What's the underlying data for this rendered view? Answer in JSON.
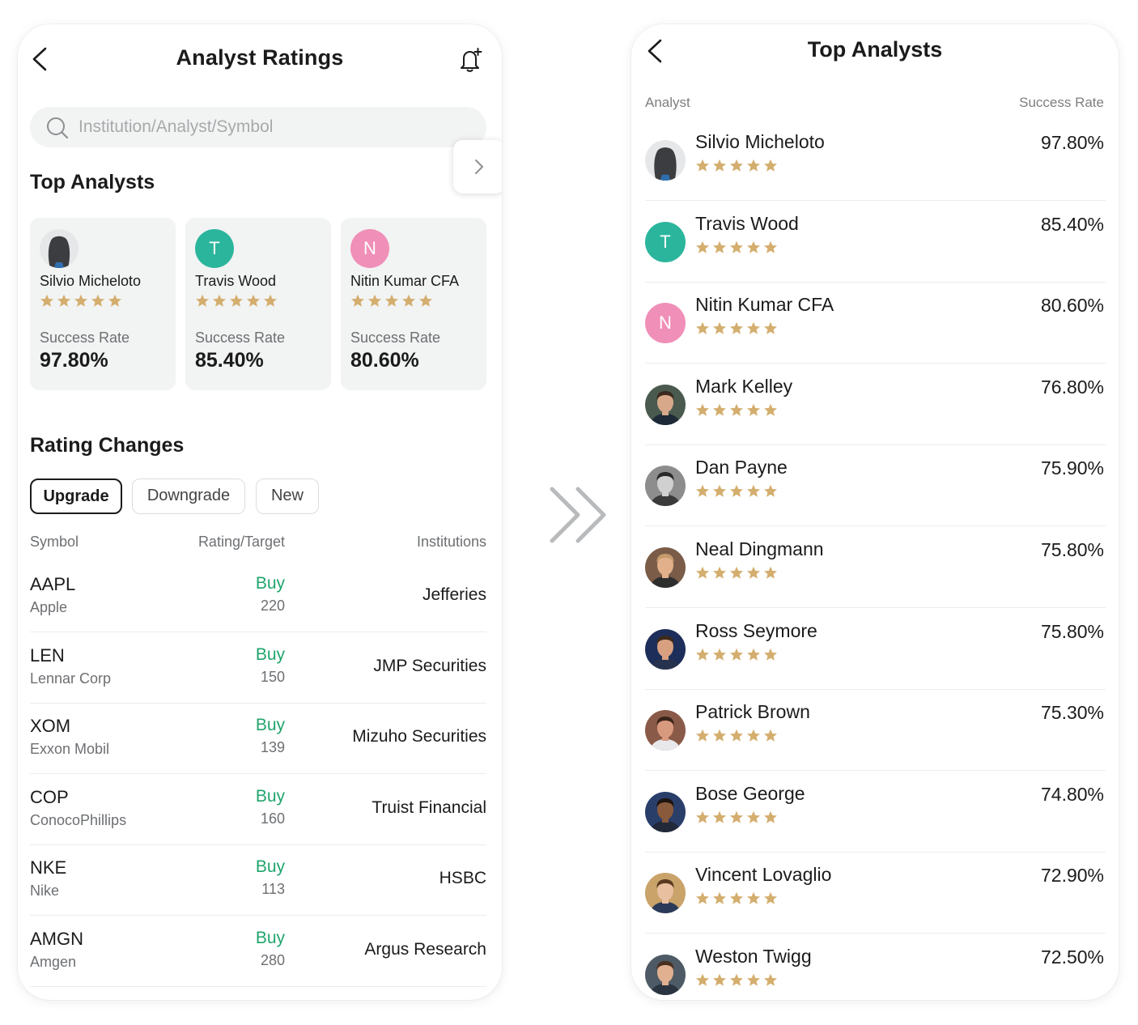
{
  "colors": {
    "star": "#d4ae6e",
    "buy": "#20a56c",
    "teal_avatar": "#2bb59d",
    "pink_avatar": "#f08fb8",
    "card_bg": "#f2f3f3"
  },
  "left": {
    "header": {
      "title": "Analyst Ratings",
      "back_icon": "chevron-left-icon",
      "bell_icon": "bell-plus-icon"
    },
    "search": {
      "placeholder": "Institution/Analyst/Symbol",
      "icon": "search-icon"
    },
    "top_analysts": {
      "title": "Top Analysts",
      "cards": [
        {
          "name": "Silvio Micheloto",
          "avatar_type": "silhouette",
          "success_label": "Success Rate",
          "success_rate": "97.80%",
          "stars": 5
        },
        {
          "name": "Travis Wood",
          "avatar_type": "letter",
          "avatar_letter": "T",
          "avatar_color": "#2bb59d",
          "success_label": "Success Rate",
          "success_rate": "85.40%",
          "stars": 5
        },
        {
          "name": "Nitin Kumar CFA",
          "avatar_type": "letter",
          "avatar_letter": "N",
          "avatar_color": "#f08fb8",
          "success_label": "Success Rate",
          "success_rate": "80.60%",
          "stars": 5
        }
      ]
    },
    "rating_changes": {
      "title": "Rating Changes",
      "filters": [
        "Upgrade",
        "Downgrade",
        "New"
      ],
      "active_filter": "Upgrade",
      "columns": {
        "symbol": "Symbol",
        "rating": "Rating/Target",
        "institutions": "Institutions"
      },
      "rows": [
        {
          "symbol": "AAPL",
          "company": "Apple",
          "rating": "Buy",
          "target": "220",
          "institution": "Jefferies"
        },
        {
          "symbol": "LEN",
          "company": "Lennar Corp",
          "rating": "Buy",
          "target": "150",
          "institution": "JMP Securities"
        },
        {
          "symbol": "XOM",
          "company": "Exxon Mobil",
          "rating": "Buy",
          "target": "139",
          "institution": "Mizuho Securities"
        },
        {
          "symbol": "COP",
          "company": "ConocoPhillips",
          "rating": "Buy",
          "target": "160",
          "institution": "Truist Financial"
        },
        {
          "symbol": "NKE",
          "company": "Nike",
          "rating": "Buy",
          "target": "113",
          "institution": "HSBC"
        },
        {
          "symbol": "AMGN",
          "company": "Amgen",
          "rating": "Buy",
          "target": "280",
          "institution": "Argus Research"
        }
      ]
    }
  },
  "right": {
    "header": {
      "title": "Top Analysts",
      "back_icon": "chevron-left-icon"
    },
    "columns": {
      "analyst": "Analyst",
      "success": "Success Rate"
    },
    "analysts": [
      {
        "name": "Silvio Micheloto",
        "rate": "97.80%",
        "stars": 5,
        "avatar_type": "silhouette"
      },
      {
        "name": "Travis Wood",
        "rate": "85.40%",
        "stars": 5,
        "avatar_type": "letter",
        "avatar_letter": "T",
        "avatar_color": "#2bb59d"
      },
      {
        "name": "Nitin Kumar CFA",
        "rate": "80.60%",
        "stars": 5,
        "avatar_type": "letter",
        "avatar_letter": "N",
        "avatar_color": "#f08fb8"
      },
      {
        "name": "Mark Kelley",
        "rate": "76.80%",
        "stars": 5,
        "avatar_type": "photo",
        "bg": "#4a5a4e",
        "skin": "#d7a88a",
        "hair": "#3a2a1e",
        "shirt": "#1f2a38"
      },
      {
        "name": "Dan Payne",
        "rate": "75.90%",
        "stars": 5,
        "avatar_type": "photo",
        "bg": "#8d8d8d",
        "skin": "#d0d0d0",
        "hair": "#2a2a2a",
        "shirt": "#3b3b3b"
      },
      {
        "name": "Neal Dingmann",
        "rate": "75.80%",
        "stars": 5,
        "avatar_type": "photo",
        "bg": "#7a5c48",
        "skin": "#e2b08a",
        "hair": "#c49a6c",
        "shirt": "#2e2e2e"
      },
      {
        "name": "Ross Seymore",
        "rate": "75.80%",
        "stars": 5,
        "avatar_type": "photo",
        "bg": "#1d2e5a",
        "skin": "#d8a080",
        "hair": "#3c2a1c",
        "shirt": "#26324e"
      },
      {
        "name": "Patrick Brown",
        "rate": "75.30%",
        "stars": 5,
        "avatar_type": "photo",
        "bg": "#8a5a48",
        "skin": "#d89a7e",
        "hair": "#3a2418",
        "shirt": "#e8e8ea"
      },
      {
        "name": "Bose George",
        "rate": "74.80%",
        "stars": 5,
        "avatar_type": "photo",
        "bg": "#2a3e6a",
        "skin": "#8a5a3c",
        "hair": "#1e1410",
        "shirt": "#222a3a"
      },
      {
        "name": "Vincent Lovaglio",
        "rate": "72.90%",
        "stars": 5,
        "avatar_type": "photo",
        "bg": "#c9a36a",
        "skin": "#e8c0a0",
        "hair": "#5a3a20",
        "shirt": "#2c3a5a"
      },
      {
        "name": "Weston Twigg",
        "rate": "72.50%",
        "stars": 5,
        "avatar_type": "photo",
        "bg": "#4e5b66",
        "skin": "#e0b090",
        "hair": "#4a3020",
        "shirt": "#2a3440"
      }
    ]
  },
  "transition": {
    "icon": "double-chevron-right-icon"
  }
}
